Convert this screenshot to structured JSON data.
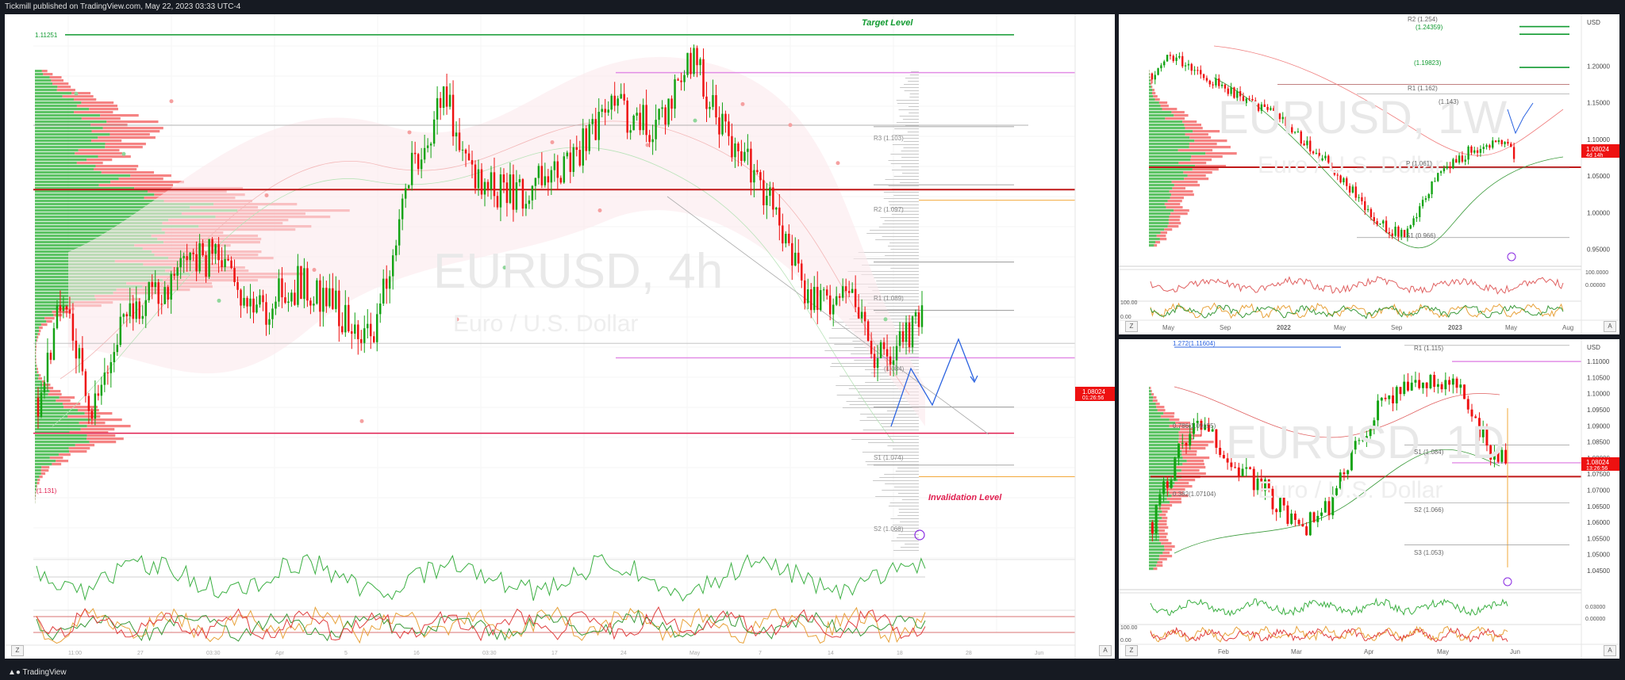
{
  "header": {
    "published": "Tickmill published on TradingView.com, May 22, 2023 03:33 UTC-4"
  },
  "footer": {
    "brand": "TradingView"
  },
  "panels": {
    "main": {
      "watermark_symbol": "EURUSD, 4h",
      "watermark_name": "Euro / U.S. Dollar",
      "target_label": "Target Level",
      "invalidation_label": "Invalidation Level",
      "target_price_tag": "1.11251",
      "pivot_labels": [
        "R3 (1.103)",
        "R2 (1.097)",
        "R1 (1.089)",
        "(1.084)",
        "S1 (1.074)",
        "S2 (1.068)"
      ],
      "last_price": "1.08024",
      "countdown": "01:26:56",
      "x_ticks": [
        "11:00",
        "27",
        "03:30",
        "Apr",
        "5",
        "16",
        "03:30",
        "17",
        "24",
        "May",
        "7",
        "14",
        "18",
        "28",
        "Jun"
      ],
      "level_tag": "(1.131)",
      "corner_z": "Z",
      "corner_a": "A"
    },
    "top_right": {
      "watermark_symbol": "EURUSD, 1W",
      "watermark_name": "Euro / U.S. Dollar",
      "currency": "USD",
      "y_ticks": [
        "1.20000",
        "1.15000",
        "1.10000",
        "1.05000",
        "1.00000",
        "0.95000"
      ],
      "level_labels": [
        "R2 (1.254)",
        "(1.24359)",
        "(1.19823)",
        "R1 (1.162)",
        "(1.143)",
        "P (1.061)",
        "S1 (0.966)"
      ],
      "last_price": "1.08024",
      "countdown": "4d 14h",
      "x_ticks": [
        "May",
        "Sep",
        "2022",
        "May",
        "Sep",
        "2023",
        "May",
        "Aug"
      ],
      "osc_ticks": [
        "100.0000",
        "0.00000"
      ],
      "stoch_ticks": [
        "100.00",
        "0.00"
      ],
      "corner_z": "Z",
      "corner_a": "A"
    },
    "bottom_right": {
      "watermark_symbol": "EURUSD, 1D",
      "watermark_name": "Euro / U.S. Dollar",
      "currency": "USD",
      "y_ticks": [
        "1.11000",
        "1.10500",
        "1.10000",
        "1.09500",
        "1.09000",
        "1.08500",
        "1.08000",
        "1.07500",
        "1.07000",
        "1.06500",
        "1.06000",
        "1.05500",
        "1.05000",
        "1.04500"
      ],
      "level_labels": [
        "1.272(1.11604)",
        "R1 (1.115)",
        "0.786(1.09155)",
        "S1 (1.084)",
        "0.382(1.07104)",
        "S2 (1.066)",
        "S3 (1.053)"
      ],
      "last_price": "1.08024",
      "countdown": "13:26:56",
      "x_ticks": [
        "Feb",
        "Mar",
        "Apr",
        "May",
        "Jun"
      ],
      "osc_ticks": [
        "0.03000",
        "0.00000"
      ],
      "stoch_ticks": [
        "100.00",
        "0.00"
      ],
      "corner_z": "Z",
      "corner_a": "A"
    }
  },
  "colors": {
    "bull": "#13a313",
    "bear": "#ee1111",
    "target": "#109a30",
    "invalidation": "#e01e4f",
    "pivot": "#8a8a8a",
    "magenta": "#e28de6",
    "orange": "#f2a93b",
    "forecast": "#2b63e0"
  },
  "chart_data": [
    {
      "type": "candlestick",
      "symbol": "EURUSD",
      "timeframe": "4h",
      "title": "EURUSD, 4h",
      "subtitle": "Euro / U.S. Dollar",
      "last": 1.08024,
      "levels": {
        "target": 1.11251,
        "invalidation": 1.0713,
        "R3": 1.103,
        "R2": 1.097,
        "R1": 1.089,
        "P": 1.084,
        "S1": 1.074,
        "S2": 1.068
      },
      "overlays": [
        "volume profile",
        "ichimoku cloud",
        "pivot points"
      ],
      "indicators": [
        "momentum oscillator",
        "stochastic"
      ],
      "forecast_path": [
        1.08,
        1.086,
        1.09,
        1.085
      ]
    },
    {
      "type": "candlestick",
      "symbol": "EURUSD",
      "timeframe": "1W",
      "title": "EURUSD, 1W",
      "subtitle": "Euro / U.S. Dollar",
      "last": 1.08024,
      "ylim": [
        0.93,
        1.26
      ],
      "levels": {
        "R2": 1.254,
        "fib_1": 1.24359,
        "fib_2": 1.19823,
        "R1": 1.162,
        "P": 1.061,
        "S1": 0.966
      }
    },
    {
      "type": "candlestick",
      "symbol": "EURUSD",
      "timeframe": "1D",
      "title": "EURUSD, 1D",
      "subtitle": "Euro / U.S. Dollar",
      "last": 1.08024,
      "ylim": [
        1.042,
        1.116
      ],
      "levels": {
        "fib_1272": 1.11604,
        "R1": 1.115,
        "fib_0786": 1.09155,
        "S1": 1.084,
        "fib_0382": 1.07104,
        "S2": 1.066,
        "S3": 1.053
      }
    }
  ]
}
